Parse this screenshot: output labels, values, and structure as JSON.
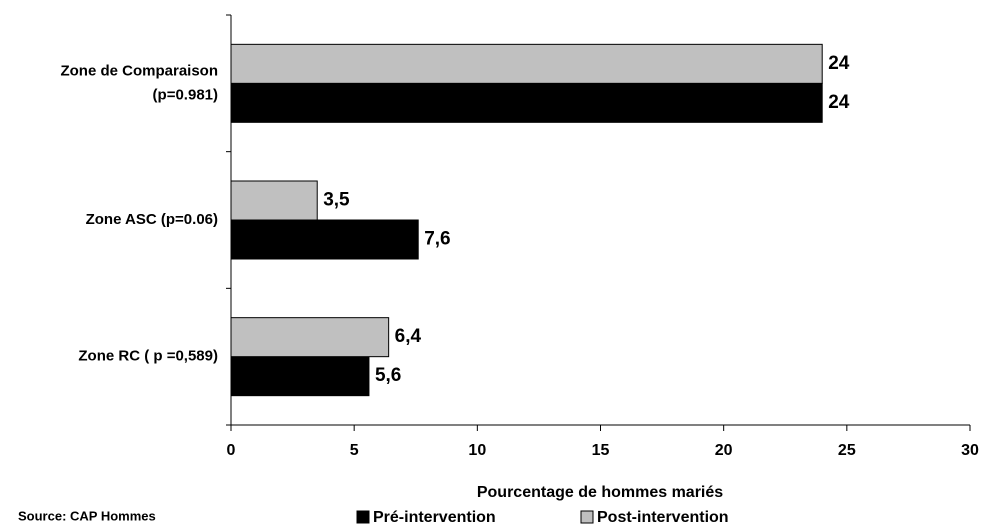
{
  "chart_data": {
    "type": "hbar",
    "categories": [
      [
        "Zone de Comparaison",
        "(p=0.981)"
      ],
      [
        "Zone ASC (p=0.06)"
      ],
      [
        "Zone RC  ( p =0,589)"
      ]
    ],
    "series": [
      {
        "name": "Pré-intervention",
        "color": "#000000",
        "values": [
          24,
          7.6,
          5.6
        ],
        "value_labels": [
          "24",
          "7,6",
          "5,6"
        ]
      },
      {
        "name": "Post-intervention",
        "color": "#c0c0c0",
        "values": [
          24,
          3.5,
          6.4
        ],
        "value_labels": [
          "24",
          "3,5",
          "6,4"
        ]
      }
    ],
    "xlabel": "Pourcentage de hommes mariés",
    "xlim": [
      0,
      30
    ],
    "xticks": [
      0,
      5,
      10,
      15,
      20,
      25,
      30
    ],
    "source": "Source: CAP Hommes",
    "legend": "bottom"
  }
}
